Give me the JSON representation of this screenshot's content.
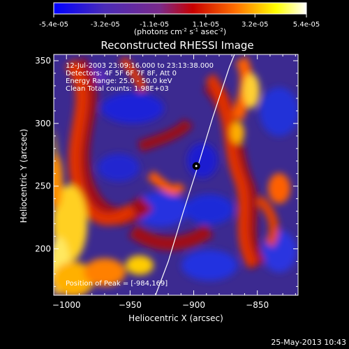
{
  "colorbar": {
    "tick_labels": [
      "-5.4e-05",
      "-3.2e-05",
      "-1.1e-05",
      "1.1e-05",
      "3.2e-05",
      "5.4e-05"
    ],
    "tick_values": [
      -5.4e-05,
      -3.2e-05,
      -1.1e-05,
      1.1e-05,
      3.2e-05,
      5.4e-05
    ],
    "range": [
      -5.4e-05,
      5.4e-05
    ],
    "units_main": "(photons cm",
    "units_exp1": "-2",
    "units_mid": " s",
    "units_exp2": "-1",
    "units_end": " asec",
    "units_exp3": "-2",
    "units_close": ")",
    "colors": [
      "#0000ff",
      "#4a2bb8",
      "#7a2a8a",
      "#c80000",
      "#ff7000",
      "#ffff00",
      "#ffffff"
    ]
  },
  "chart_data": {
    "type": "heatmap",
    "title": "Reconstructed RHESSI Image",
    "xlabel": "Heliocentric X (arcsec)",
    "ylabel": "Heliocentric Y (arcsec)",
    "xlim": [
      -1010,
      -818
    ],
    "ylim": [
      163,
      355
    ],
    "x_ticks": [
      -1000,
      -950,
      -900,
      -850
    ],
    "x_tick_labels": [
      "−1000",
      "−950",
      "−900",
      "−850"
    ],
    "y_ticks": [
      200,
      250,
      300,
      350
    ],
    "y_tick_labels": [
      "200",
      "250",
      "300",
      "350"
    ],
    "annotations": [
      "12-Jul-2003 23:09:16.000 to 23:13:38.000",
      "Detectors: 4F 5F 6F 7F 8F, Att 0",
      "Energy Range: 25.0 - 50.0 keV",
      "Clean     Total counts: 1.98E+03"
    ],
    "peak_label": "Position of Peak = [-984,169]",
    "peak": [
      -984,
      169
    ],
    "marker": [
      -898,
      266
    ],
    "limb_curve": [
      [
        -930,
        163
      ],
      [
        -920,
        190
      ],
      [
        -908,
        230
      ],
      [
        -897,
        265
      ],
      [
        -885,
        305
      ],
      [
        -872,
        345
      ],
      [
        -868,
        355
      ]
    ]
  },
  "footer": {
    "timestamp": "25-May-2013 10:43"
  }
}
